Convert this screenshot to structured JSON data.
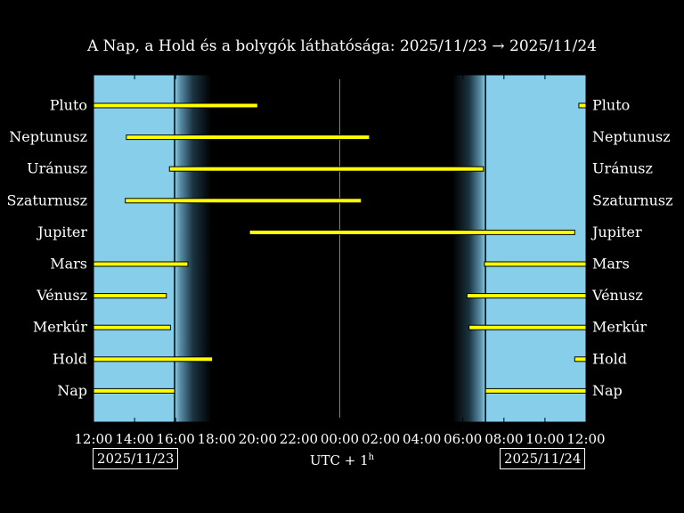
{
  "title": "A Nap, a Hold és a bolygók láthatósága: 2025/11/23 → 2025/11/24",
  "timezone_label": "UTC + 1",
  "timezone_sup": "h",
  "start_date": "2025/11/23",
  "end_date": "2025/11/24",
  "colors": {
    "day": "#87ceeb",
    "night": "#000000",
    "bar": "#ffff00",
    "bar_edge": "#000000",
    "midnight_line": "#808080"
  },
  "chart_data": {
    "type": "bar",
    "title": "A Nap, a Hold és a bolygók láthatósága: 2025/11/23 → 2025/11/24",
    "xlabel": "UTC + 1h",
    "xlim": [
      12,
      36
    ],
    "x_tick_labels": [
      "12:00",
      "14:00",
      "16:00",
      "18:00",
      "20:00",
      "22:00",
      "00:00",
      "02:00",
      "04:00",
      "06:00",
      "08:00",
      "10:00",
      "12:00"
    ],
    "x_ticks": [
      12,
      14,
      16,
      18,
      20,
      22,
      24,
      26,
      28,
      30,
      32,
      34,
      36
    ],
    "twilight": {
      "sunset": 15.95,
      "dusk_end": 17.75,
      "dawn_start": 29.5,
      "sunrise": 31.1
    },
    "midnight": 24,
    "categories": [
      "Pluto",
      "Neptunusz",
      "Uránusz",
      "Szaturnusz",
      "Jupiter",
      "Mars",
      "Vénusz",
      "Merkúr",
      "Hold",
      "Nap"
    ],
    "intervals": [
      [
        [
          12.0,
          20.0
        ],
        [
          35.65,
          36.0
        ]
      ],
      [
        [
          13.6,
          25.45
        ]
      ],
      [
        [
          15.7,
          31.0
        ]
      ],
      [
        [
          13.55,
          25.05
        ]
      ],
      [
        [
          19.6,
          35.45
        ]
      ],
      [
        [
          12.0,
          16.6
        ],
        [
          31.05,
          36.0
        ]
      ],
      [
        [
          12.0,
          15.55
        ],
        [
          30.2,
          36.0
        ]
      ],
      [
        [
          12.0,
          15.75
        ],
        [
          30.3,
          36.0
        ]
      ],
      [
        [
          12.0,
          17.8
        ],
        [
          35.45,
          36.0
        ]
      ],
      [
        [
          12.0,
          15.95
        ],
        [
          31.1,
          36.0
        ]
      ]
    ]
  }
}
